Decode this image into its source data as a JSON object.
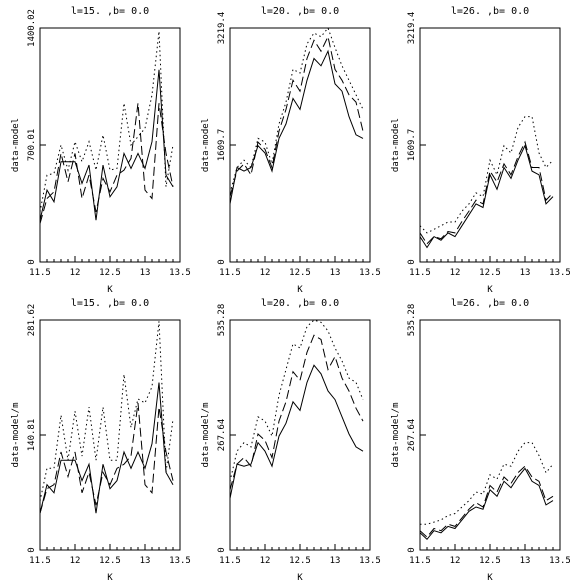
{
  "chart_data": [
    {
      "type": "line",
      "title": "l=15. ,b=   0.0",
      "xlabel": "K",
      "ylabel": "data-model",
      "xlim": [
        11.5,
        13.5
      ],
      "ylim": [
        0,
        1400.02
      ],
      "x_ticks": [
        "11.5",
        "12",
        "12.5",
        "13",
        "13.5"
      ],
      "y_ticks": [
        "0",
        "700.01",
        "1400.02"
      ],
      "x": [
        11.5,
        11.6,
        11.7,
        11.8,
        11.9,
        12.0,
        12.1,
        12.2,
        12.3,
        12.4,
        12.5,
        12.6,
        12.7,
        12.8,
        12.9,
        13.0,
        13.1,
        13.2,
        13.3,
        13.4
      ],
      "series": [
        {
          "style": "solid",
          "values": [
            250,
            430,
            360,
            600,
            600,
            600,
            470,
            580,
            250,
            580,
            390,
            450,
            650,
            560,
            650,
            560,
            720,
            1150,
            520,
            450
          ]
        },
        {
          "style": "dashed",
          "values": [
            230,
            380,
            420,
            650,
            480,
            650,
            380,
            520,
            300,
            500,
            420,
            520,
            550,
            620,
            950,
            430,
            380,
            950,
            650,
            450
          ]
        },
        {
          "style": "dotted",
          "values": [
            300,
            520,
            530,
            700,
            550,
            720,
            600,
            720,
            550,
            760,
            550,
            560,
            950,
            700,
            750,
            800,
            1000,
            1380,
            450,
            700
          ]
        }
      ]
    },
    {
      "type": "line",
      "title": "l=20. ,b=   0.0",
      "xlabel": "K",
      "ylabel": "data-model",
      "xlim": [
        11.5,
        13.5
      ],
      "ylim": [
        0,
        3219.4
      ],
      "x_ticks": [
        "11.5",
        "12",
        "12.5",
        "13",
        "13.5"
      ],
      "y_ticks": [
        "0",
        "1609.7",
        "3219.4"
      ],
      "x": [
        11.5,
        11.6,
        11.7,
        11.8,
        11.9,
        12.0,
        12.1,
        12.2,
        12.3,
        12.4,
        12.5,
        12.6,
        12.7,
        12.8,
        12.9,
        13.0,
        13.1,
        13.2,
        13.3,
        13.4
      ],
      "series": [
        {
          "style": "solid",
          "values": [
            800,
            1300,
            1250,
            1300,
            1600,
            1500,
            1250,
            1700,
            1900,
            2250,
            2100,
            2500,
            2800,
            2700,
            2900,
            2450,
            2350,
            2000,
            1750,
            1700
          ]
        },
        {
          "style": "dashed",
          "values": [
            900,
            1250,
            1350,
            1200,
            1650,
            1550,
            1300,
            1800,
            2100,
            2500,
            2350,
            2800,
            3050,
            2900,
            3100,
            2650,
            2500,
            2300,
            2200,
            1800
          ]
        },
        {
          "style": "dotted",
          "values": [
            950,
            1300,
            1400,
            1300,
            1700,
            1650,
            1350,
            1900,
            2200,
            2650,
            2600,
            3000,
            3150,
            3100,
            3219,
            2950,
            2700,
            2500,
            2300,
            2100
          ]
        }
      ]
    },
    {
      "type": "line",
      "title": "l=26. ,b=   0.0",
      "xlabel": "K",
      "ylabel": "data-model",
      "xlim": [
        11.5,
        13.5
      ],
      "ylim": [
        0,
        3219.4
      ],
      "x_ticks": [
        "11.5",
        "12",
        "12.5",
        "13",
        "13.5"
      ],
      "y_ticks": [
        "0",
        "1609.7",
        "3219.4"
      ],
      "x": [
        11.5,
        11.6,
        11.7,
        11.8,
        11.9,
        12.0,
        12.1,
        12.2,
        12.3,
        12.4,
        12.5,
        12.6,
        12.7,
        12.8,
        12.9,
        13.0,
        13.1,
        13.2,
        13.3,
        13.4
      ],
      "series": [
        {
          "style": "solid",
          "values": [
            350,
            200,
            350,
            300,
            400,
            350,
            500,
            650,
            800,
            750,
            1200,
            1000,
            1300,
            1150,
            1400,
            1600,
            1250,
            1200,
            800,
            900
          ]
        },
        {
          "style": "dashed",
          "values": [
            400,
            250,
            350,
            320,
            420,
            400,
            560,
            700,
            850,
            800,
            1250,
            1100,
            1350,
            1200,
            1450,
            1650,
            1300,
            1300,
            850,
            950
          ]
        },
        {
          "style": "dotted",
          "values": [
            500,
            400,
            450,
            500,
            550,
            550,
            700,
            800,
            950,
            900,
            1400,
            1200,
            1600,
            1500,
            1850,
            2000,
            2000,
            1500,
            1300,
            1400
          ]
        }
      ]
    },
    {
      "type": "line",
      "title": "l=15. ,b=   0.0",
      "xlabel": "K",
      "ylabel": "data-model/m",
      "xlim": [
        11.5,
        13.5
      ],
      "ylim": [
        0,
        281.62
      ],
      "x_ticks": [
        "11.5",
        "12",
        "12.5",
        "13",
        "13.5"
      ],
      "y_ticks": [
        "0",
        "140.81",
        "281.62"
      ],
      "x": [
        11.5,
        11.6,
        11.7,
        11.8,
        11.9,
        12.0,
        12.1,
        12.2,
        12.3,
        12.4,
        12.5,
        12.6,
        12.7,
        12.8,
        12.9,
        13.0,
        13.1,
        13.2,
        13.3,
        13.4
      ],
      "series": [
        {
          "style": "solid",
          "values": [
            45,
            80,
            70,
            110,
            110,
            110,
            85,
            105,
            45,
            105,
            75,
            85,
            120,
            100,
            120,
            100,
            130,
            205,
            95,
            80
          ]
        },
        {
          "style": "dashed",
          "values": [
            45,
            75,
            80,
            120,
            90,
            120,
            70,
            95,
            55,
            95,
            80,
            100,
            105,
            115,
            180,
            80,
            70,
            175,
            120,
            85
          ]
        },
        {
          "style": "dotted",
          "values": [
            60,
            100,
            100,
            165,
            110,
            170,
            115,
            175,
            110,
            175,
            110,
            110,
            215,
            150,
            185,
            180,
            200,
            280,
            95,
            160
          ]
        }
      ]
    },
    {
      "type": "line",
      "title": "l=20. ,b=   0.0",
      "xlabel": "K",
      "ylabel": "data-model/m",
      "xlim": [
        11.5,
        13.5
      ],
      "ylim": [
        0,
        535.28
      ],
      "x_ticks": [
        "11.5",
        "12",
        "12.5",
        "13",
        "13.5"
      ],
      "y_ticks": [
        "0",
        "267.64",
        "535.28"
      ],
      "x": [
        11.5,
        11.6,
        11.7,
        11.8,
        11.9,
        12.0,
        12.1,
        12.2,
        12.3,
        12.4,
        12.5,
        12.6,
        12.7,
        12.8,
        12.9,
        13.0,
        13.1,
        13.2,
        13.3,
        13.4
      ],
      "series": [
        {
          "style": "solid",
          "values": [
            120,
            200,
            195,
            200,
            250,
            230,
            195,
            265,
            295,
            345,
            325,
            390,
            430,
            410,
            370,
            350,
            310,
            270,
            240,
            230
          ]
        },
        {
          "style": "dashed",
          "values": [
            140,
            200,
            215,
            195,
            270,
            255,
            215,
            300,
            345,
            415,
            395,
            460,
            500,
            490,
            420,
            450,
            400,
            370,
            330,
            300
          ]
        },
        {
          "style": "dotted",
          "values": [
            160,
            230,
            250,
            240,
            310,
            300,
            265,
            360,
            420,
            480,
            470,
            520,
            535,
            530,
            510,
            470,
            440,
            400,
            390,
            350
          ]
        }
      ]
    },
    {
      "type": "line",
      "title": "l=26. ,b=   0.0",
      "xlabel": "K",
      "ylabel": "data-model/m",
      "xlim": [
        11.5,
        13.5
      ],
      "ylim": [
        0,
        535.28
      ],
      "x_ticks": [
        "11.5",
        "12",
        "12.5",
        "13",
        "13.5"
      ],
      "y_ticks": [
        "0",
        "267.64",
        "535.28"
      ],
      "x": [
        11.5,
        11.6,
        11.7,
        11.8,
        11.9,
        12.0,
        12.1,
        12.2,
        12.3,
        12.4,
        12.5,
        12.6,
        12.7,
        12.8,
        12.9,
        13.0,
        13.1,
        13.2,
        13.3,
        13.4
      ],
      "series": [
        {
          "style": "solid",
          "values": [
            40,
            25,
            45,
            40,
            55,
            50,
            70,
            90,
            100,
            95,
            140,
            125,
            160,
            145,
            170,
            190,
            160,
            150,
            105,
            115
          ]
        },
        {
          "style": "dashed",
          "values": [
            45,
            30,
            50,
            45,
            60,
            55,
            75,
            95,
            110,
            100,
            150,
            135,
            170,
            155,
            180,
            195,
            170,
            160,
            115,
            125
          ]
        },
        {
          "style": "dotted",
          "values": [
            60,
            60,
            65,
            70,
            80,
            85,
            100,
            115,
            135,
            130,
            175,
            165,
            200,
            195,
            230,
            250,
            250,
            220,
            180,
            200
          ]
        }
      ]
    }
  ]
}
